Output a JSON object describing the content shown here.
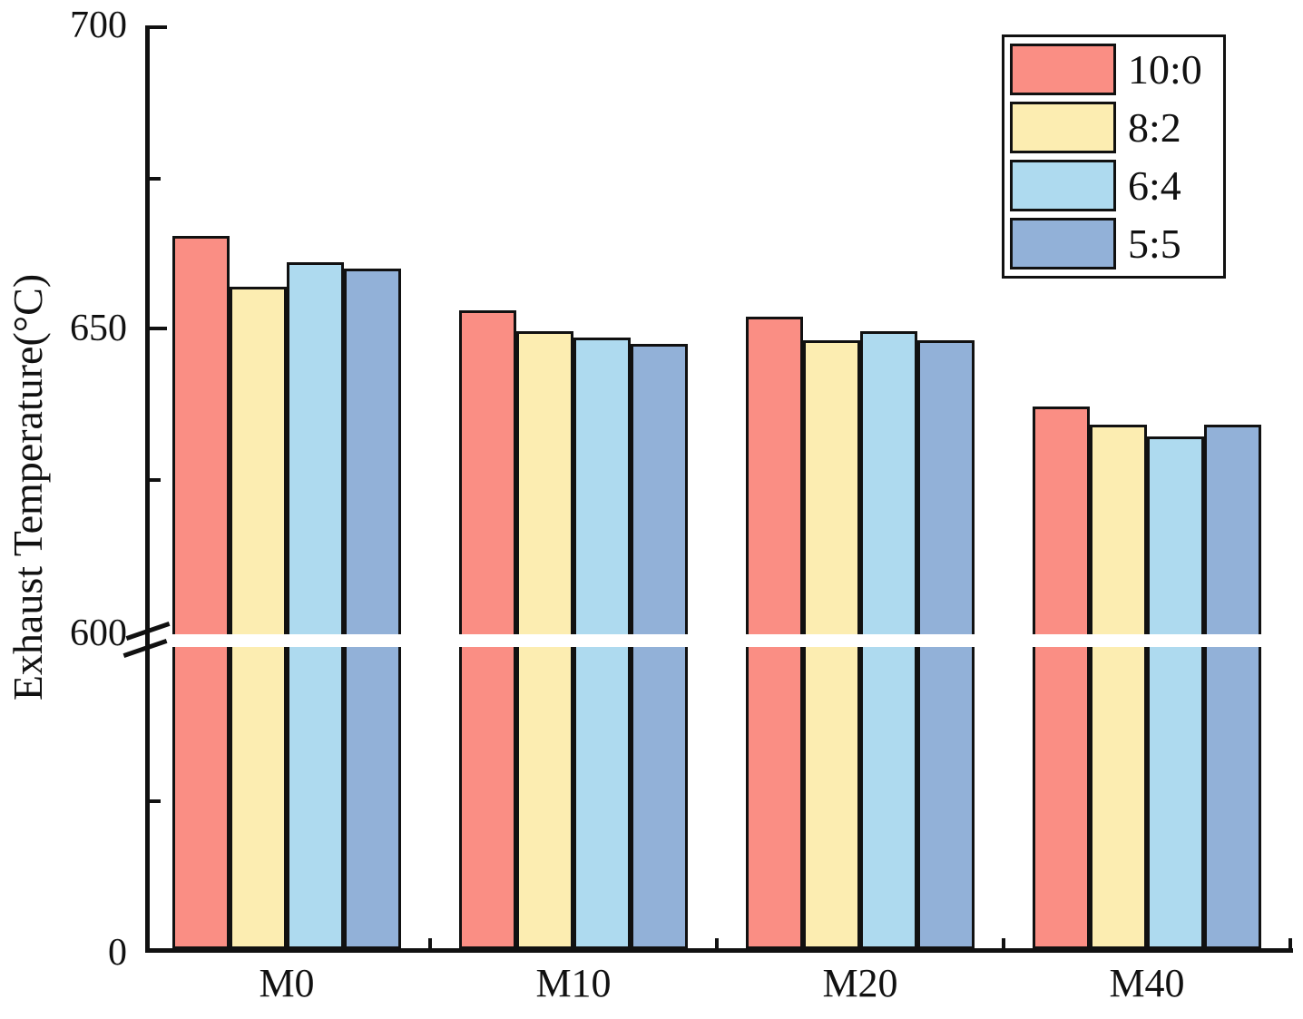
{
  "chart_data": {
    "type": "bar",
    "title": "",
    "xlabel": "",
    "ylabel": "Exhaust Temperature(°C)",
    "categories": [
      "M0",
      "M10",
      "M20",
      "M40"
    ],
    "series": [
      {
        "name": "10:0",
        "color": "#FA8E84",
        "values": [
          665.5,
          653.0,
          652.0,
          637.0
        ]
      },
      {
        "name": "8:2",
        "color": "#FCEDB1",
        "values": [
          657.0,
          649.5,
          648.0,
          634.0
        ]
      },
      {
        "name": "6:4",
        "color": "#AEDAEF",
        "values": [
          661.0,
          648.5,
          649.5,
          632.0
        ]
      },
      {
        "name": "5:5",
        "color": "#92B1D8",
        "values": [
          660.0,
          647.5,
          648.0,
          634.0
        ]
      }
    ],
    "y_axis": {
      "label": "Exhaust Temperature(°C)",
      "major_ticks": [
        {
          "label": "700",
          "value": 700
        },
        {
          "label": "650",
          "value": 650
        },
        {
          "label": "600",
          "value": 600
        },
        {
          "label": "0",
          "value": 0
        }
      ],
      "has_axis_break": true,
      "break_between": [
        0,
        600
      ],
      "upper_range": [
        600,
        700
      ],
      "minor_tick_step_upper": 25
    },
    "legend_position": "top-right",
    "grid": false,
    "bar_outline_color": "#111111",
    "background_color": "#ffffff"
  }
}
